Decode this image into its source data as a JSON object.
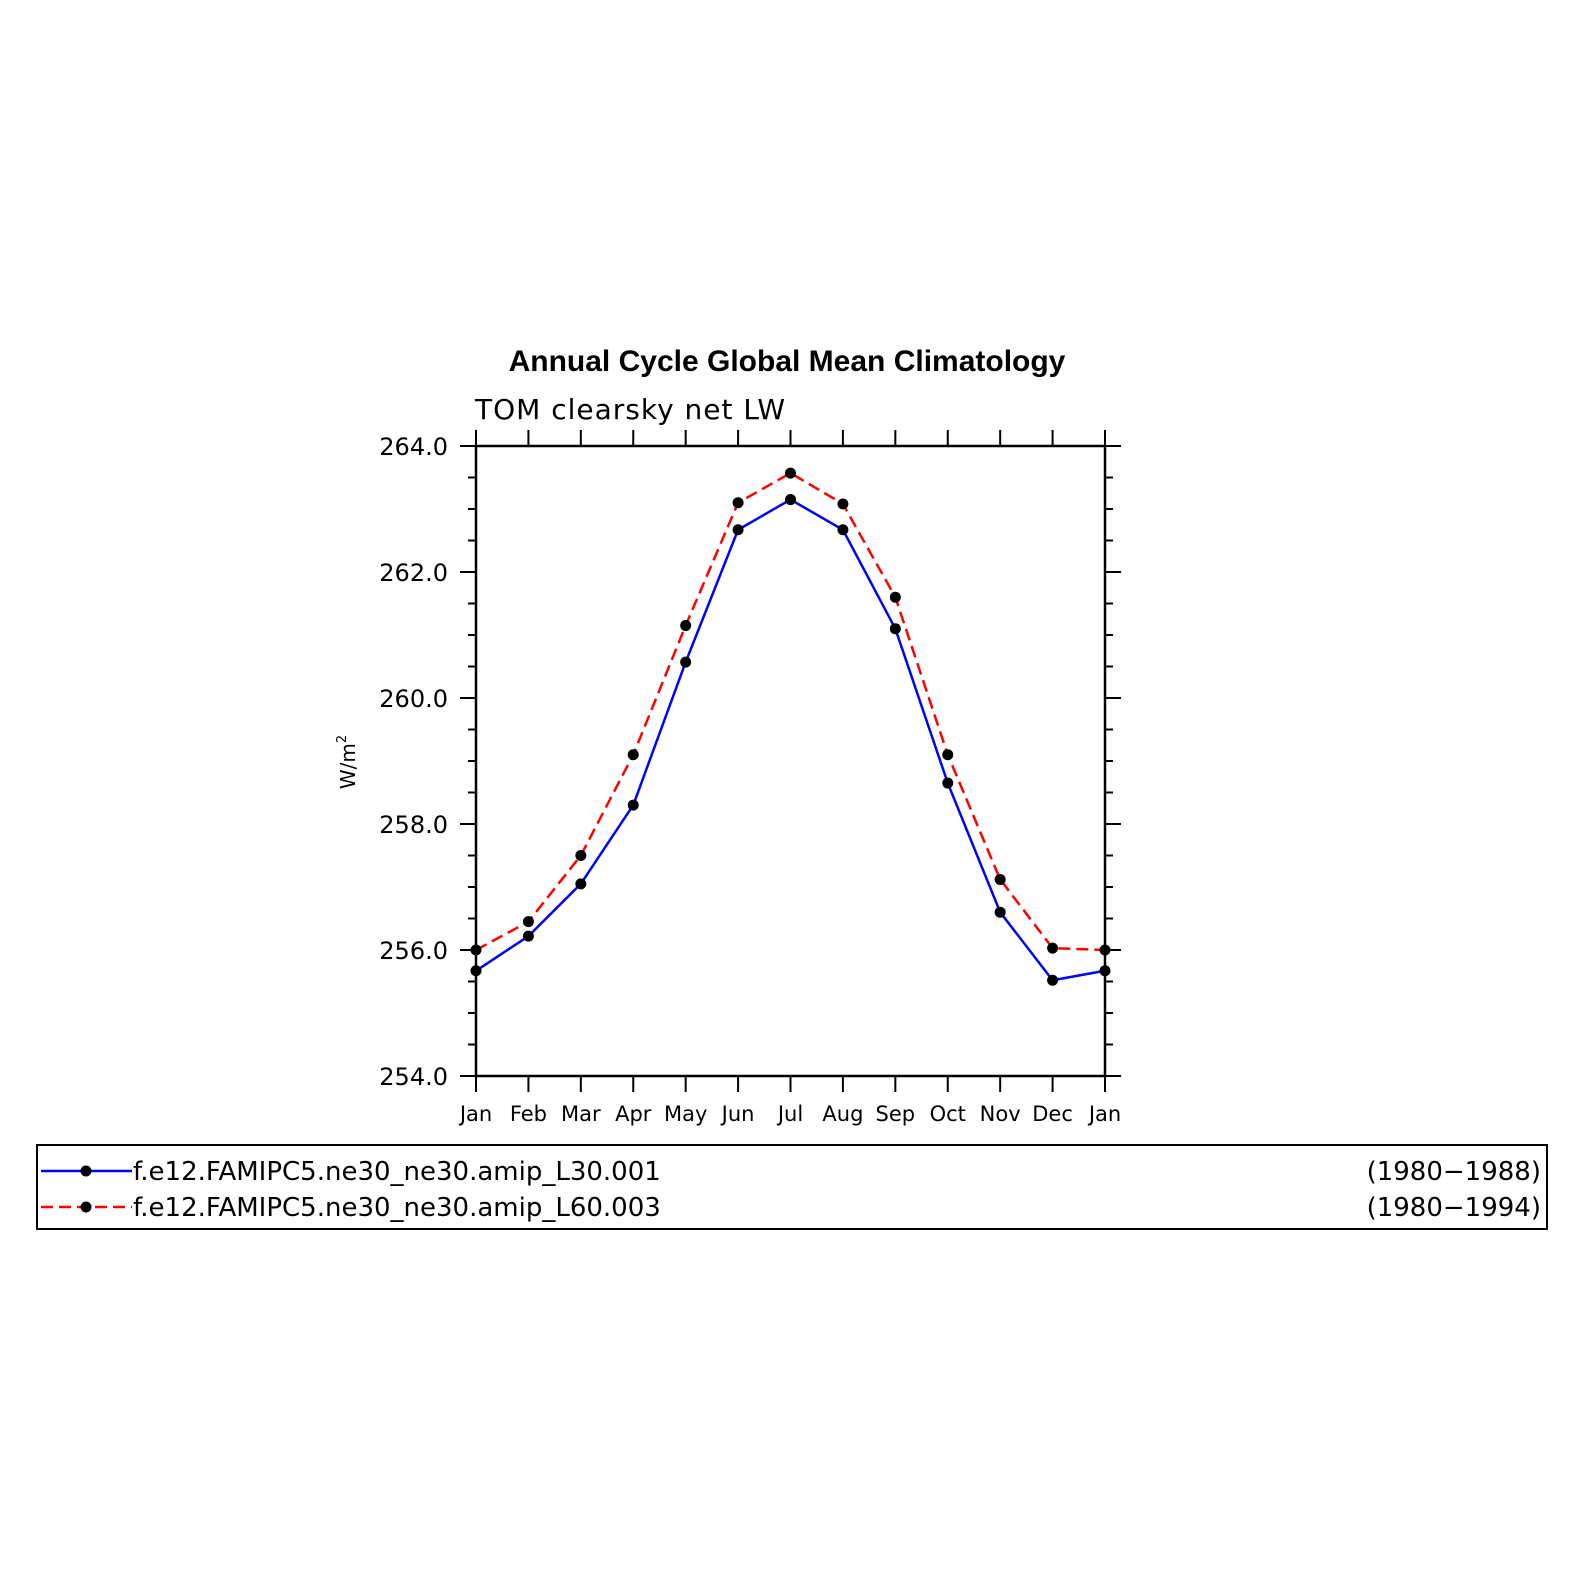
{
  "chart_data": {
    "type": "line",
    "title": "Annual Cycle Global Mean Climatology",
    "subtitle": "TOM clearsky net LW",
    "ylabel": "W/m",
    "ylabel_sup": "2",
    "xlabel": "",
    "categories": [
      "Jan",
      "Feb",
      "Mar",
      "Apr",
      "May",
      "Jun",
      "Jul",
      "Aug",
      "Sep",
      "Oct",
      "Nov",
      "Dec",
      "Jan"
    ],
    "ylim": [
      254.0,
      264.0
    ],
    "yticks": [
      "254.0",
      "256.0",
      "258.0",
      "260.0",
      "262.0",
      "264.0"
    ],
    "grid": false,
    "series": [
      {
        "name": "f.e12.FAMIPC5.ne30_ne30.amip_L30.001",
        "period": "(1980−1988)",
        "color": "#0000ff",
        "dash": "solid",
        "marker_color": "#000000",
        "values": [
          255.67,
          256.22,
          257.05,
          258.3,
          260.57,
          262.67,
          263.15,
          262.67,
          261.1,
          258.65,
          256.6,
          255.52,
          255.67
        ]
      },
      {
        "name": "f.e12.FAMIPC5.ne30_ne30.amip_L60.003",
        "period": "(1980−1994)",
        "color": "#ff0000",
        "dash": "dashed",
        "marker_color": "#000000",
        "values": [
          256.0,
          256.45,
          257.5,
          259.1,
          261.15,
          263.1,
          263.57,
          263.08,
          261.6,
          259.1,
          257.12,
          256.03,
          256.0
        ]
      }
    ],
    "legend_position": "bottom"
  }
}
